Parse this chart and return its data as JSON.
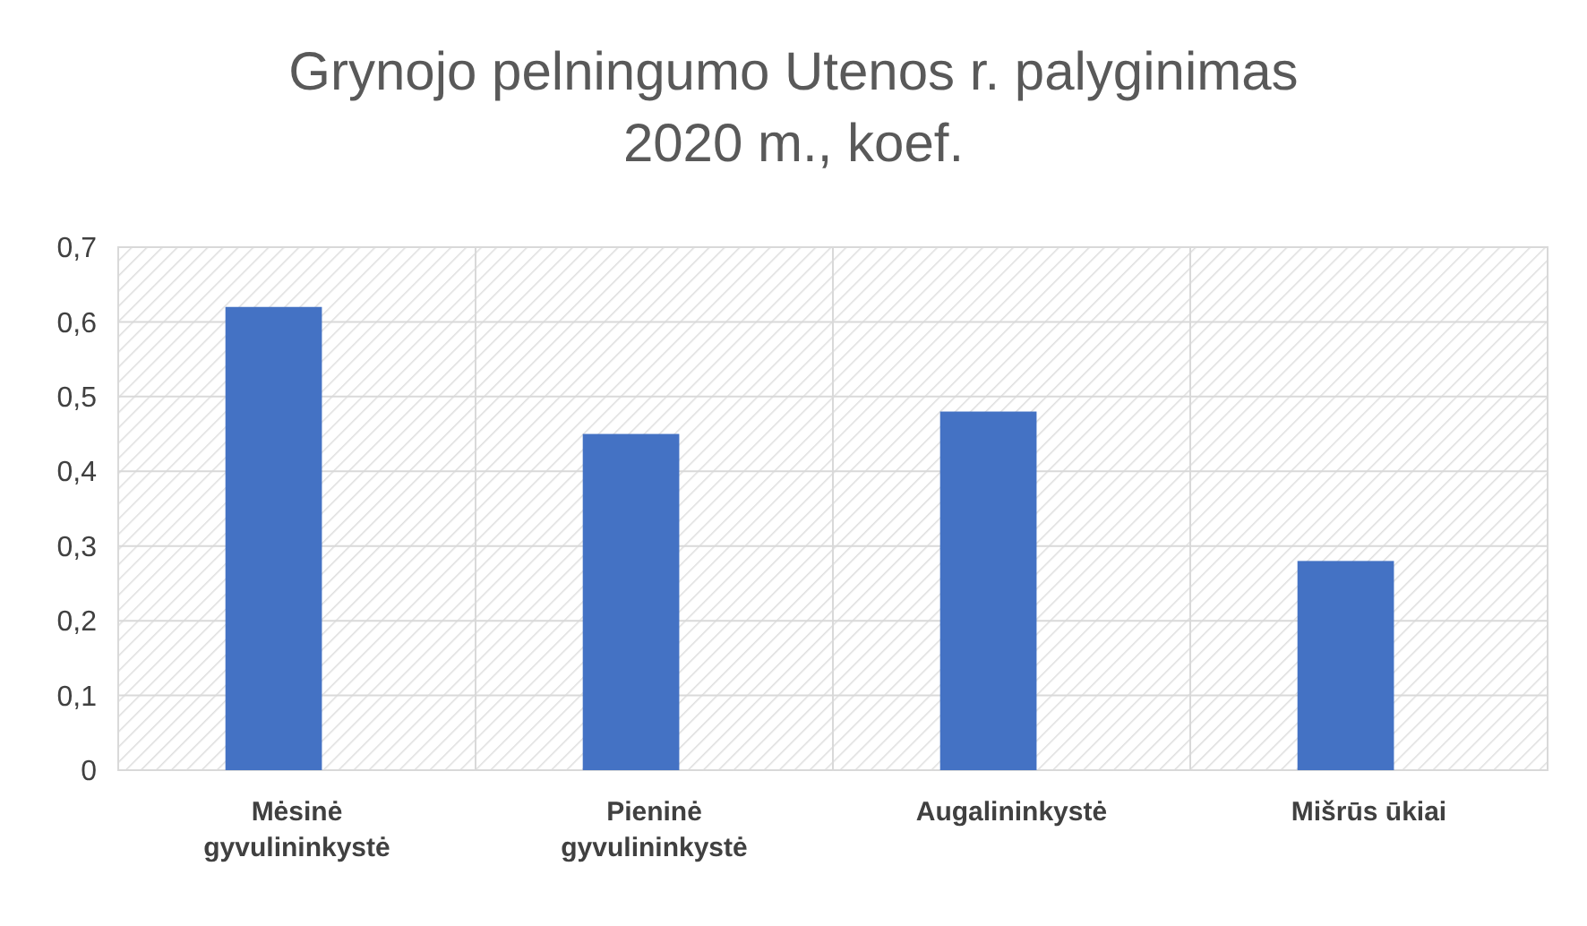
{
  "chart_data": {
    "type": "bar",
    "title": "Grynojo pelningumo Utenos r. palyginimas\n2020 m., koef.",
    "categories": [
      "Mėsinė gyvulininkystė",
      "Pieninė gyvulininkystė",
      "Augalininkystė",
      "Mišrūs ūkiai"
    ],
    "values": [
      0.62,
      0.45,
      0.48,
      0.28
    ],
    "color": "#4472c4",
    "ylim": [
      0,
      0.7
    ],
    "yticks": [
      {
        "value": 0,
        "label": "0"
      },
      {
        "value": 0.1,
        "label": "0,1"
      },
      {
        "value": 0.2,
        "label": "0,2"
      },
      {
        "value": 0.3,
        "label": "0,3"
      },
      {
        "value": 0.4,
        "label": "0,4"
      },
      {
        "value": 0.5,
        "label": "0,5"
      },
      {
        "value": 0.6,
        "label": "0,6"
      },
      {
        "value": 0.7,
        "label": "0,7"
      }
    ],
    "grid": true
  }
}
